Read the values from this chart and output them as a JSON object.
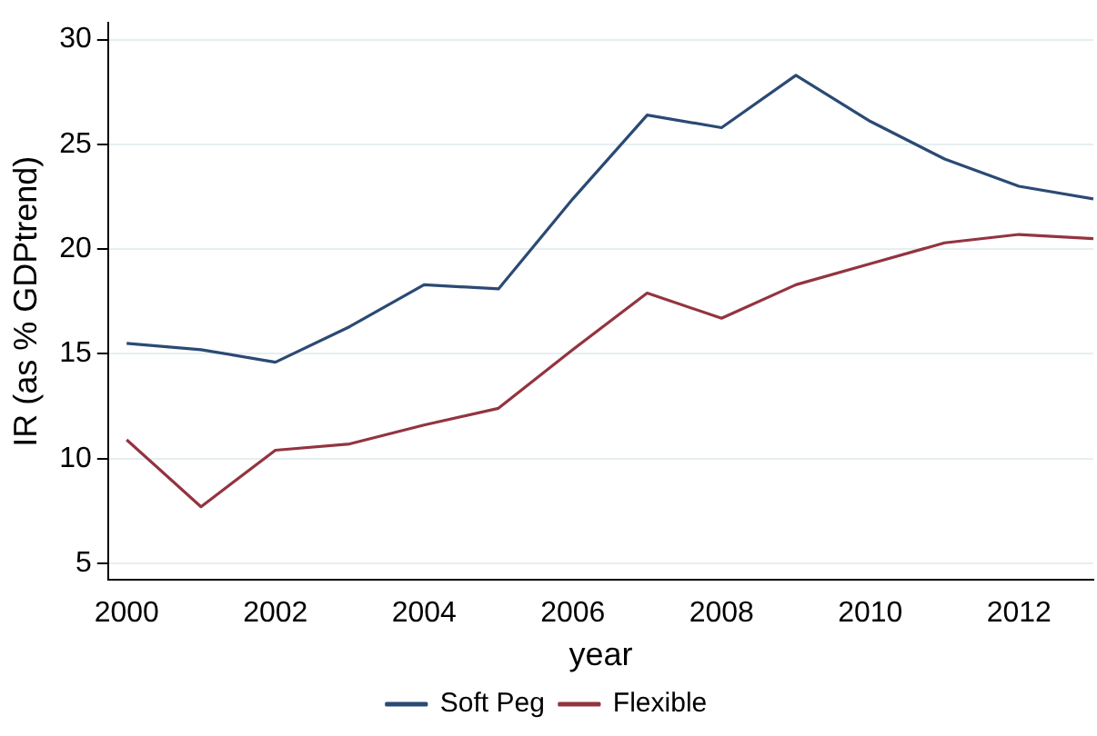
{
  "chart_data": {
    "type": "line",
    "xlabel": "year",
    "ylabel": "IR (as % GDPtrend)",
    "x": [
      2000,
      2001,
      2002,
      2003,
      2004,
      2005,
      2006,
      2007,
      2008,
      2009,
      2010,
      2011,
      2012,
      2013
    ],
    "series": [
      {
        "name": "Soft Peg",
        "color": "#2b4a74",
        "values": [
          15.5,
          15.2,
          14.6,
          16.3,
          18.3,
          18.1,
          22.4,
          26.4,
          25.8,
          28.3,
          26.1,
          24.3,
          23.0,
          22.4
        ]
      },
      {
        "name": "Flexible",
        "color": "#933440",
        "values": [
          10.9,
          7.7,
          10.4,
          10.7,
          11.6,
          12.4,
          15.2,
          17.9,
          16.7,
          18.3,
          19.3,
          20.3,
          20.7,
          20.5
        ]
      }
    ],
    "xlim": [
      1999.75,
      2013
    ],
    "ylim": [
      4.2,
      30.8
    ],
    "xticks": [
      2000,
      2002,
      2004,
      2006,
      2008,
      2010,
      2012
    ],
    "yticks": [
      5,
      10,
      15,
      20,
      25,
      30
    ],
    "grid": "y",
    "legend": "bottom",
    "marker": "none",
    "line_style": "solid"
  }
}
